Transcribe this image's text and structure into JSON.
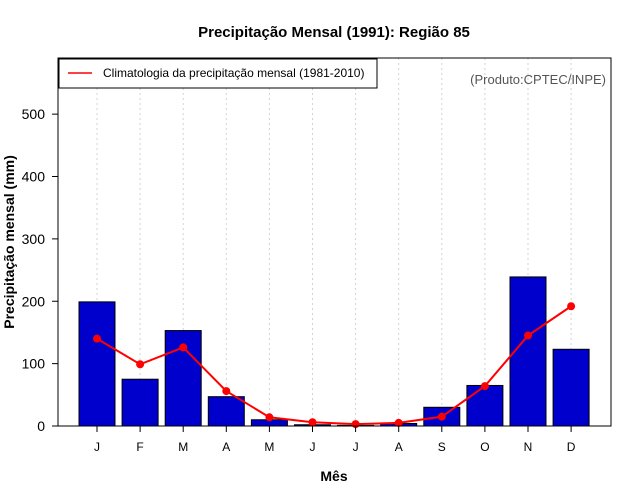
{
  "chart_data": {
    "type": "bar",
    "title": "Precipitação Mensal (1991): Região 85",
    "xlabel": "Mês",
    "ylabel": "Precipitação mensal (mm)",
    "ylim": [
      0,
      590
    ],
    "yticks": [
      0,
      100,
      200,
      300,
      400,
      500
    ],
    "grid": "vertical dotted",
    "categories": [
      "J",
      "F",
      "M",
      "A",
      "M",
      "J",
      "J",
      "A",
      "S",
      "O",
      "N",
      "D"
    ],
    "series": [
      {
        "name": "Precipitação mensal (1991)",
        "type": "bar",
        "values": [
          199,
          75,
          153,
          47,
          10,
          2,
          1,
          4,
          30,
          65,
          239,
          123
        ]
      },
      {
        "name": "Climatologia da precipitação mensal (1981-2010)",
        "type": "line",
        "values": [
          140,
          99,
          126,
          56,
          14,
          6,
          3,
          5,
          15,
          64,
          145,
          192
        ]
      }
    ],
    "legend": {
      "placement": "top-left",
      "entry": "Climatologia da precipitação mensal (1981-2010)"
    },
    "annotation": "(Produto:CPTEC/INPE)",
    "colors": {
      "bar_fill": "#0000cc",
      "bar_stroke": "#000000",
      "line": "#ff0000",
      "point": "#ff0000",
      "grid": "#d3d3d3",
      "credit": "#555555"
    }
  }
}
